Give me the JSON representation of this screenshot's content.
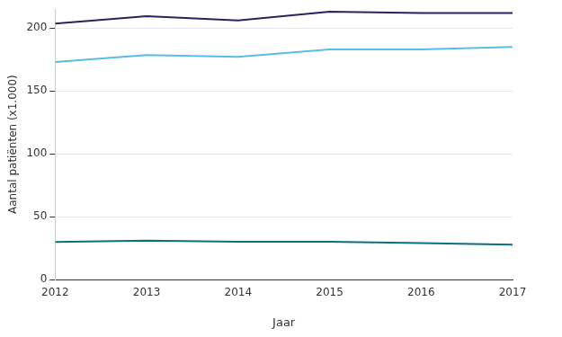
{
  "chart_data": {
    "type": "line",
    "x_label": "Jaar",
    "y_label": "Aantal patiënten (x1.000)",
    "categories": [
      "2012",
      "2013",
      "2014",
      "2015",
      "2016",
      "2017"
    ],
    "series": [
      {
        "color": "#27255f",
        "values": [
          203.5,
          209.5,
          206,
          213,
          212,
          212
        ]
      },
      {
        "color": "#5bbce4",
        "values": [
          173,
          178.5,
          177,
          183,
          183,
          185
        ]
      },
      {
        "color": "#0b6f7f",
        "values": [
          29.8,
          31,
          30,
          30,
          29,
          27.7
        ]
      }
    ],
    "ylim": [
      0,
      215
    ],
    "yticks": [
      0,
      50,
      100,
      150,
      200
    ],
    "grid": true
  }
}
